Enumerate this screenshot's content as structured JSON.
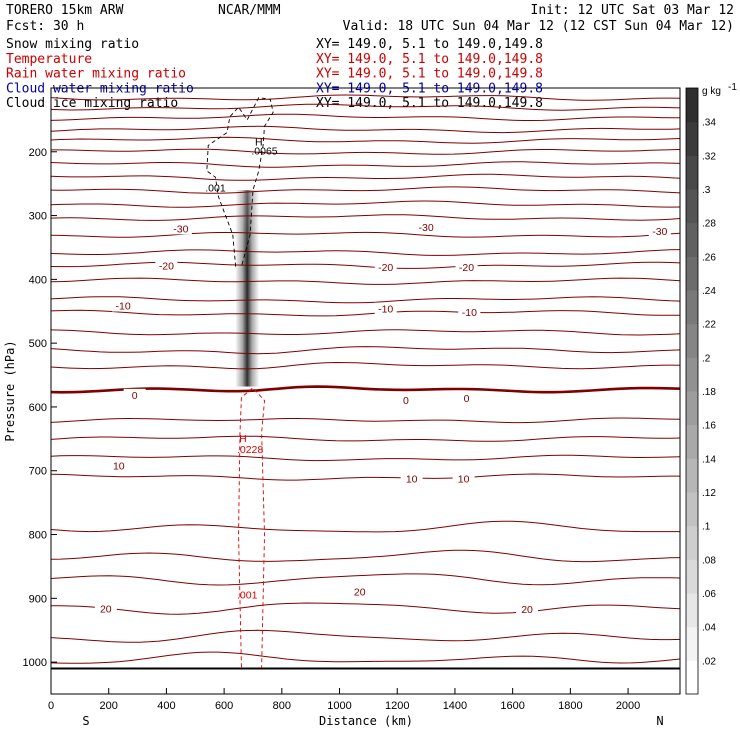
{
  "header": {
    "model": "TORERO  15km ARW",
    "center": "NCAR/MMM",
    "init": "Init: 12 UTC Sat 03 Mar 12",
    "fcst": "Fcst:   30 h",
    "valid": "Valid: 18 UTC Sun 04 Mar 12 (12 CST Sun 04 Mar 12)"
  },
  "fields": [
    {
      "name": "Snow mixing ratio",
      "xy": "XY= 149.0,  5.1 to 149.0,149.8",
      "color": "#000000"
    },
    {
      "name": "Temperature",
      "xy": "XY= 149.0,  5.1 to 149.0,149.8",
      "color": "#cc0000"
    },
    {
      "name": "Rain water mixing ratio",
      "xy": "XY= 149.0,  5.1 to 149.0,149.8",
      "color": "#cc0000"
    },
    {
      "name": "Cloud water mixing ratio",
      "xy": "XY= 149.0,  5.1 to 149.0,149.8",
      "color": "#0000aa"
    },
    {
      "name": "Cloud ice mixing ratio",
      "xy": "XY= 149.0,  5.1 to 149.0,149.8",
      "color": "#000000"
    }
  ],
  "colors": {
    "temperature": "#800000",
    "rain": "#dd0000",
    "ice": "#000000",
    "ground": "#000000"
  },
  "chart_data": {
    "type": "cross-section",
    "xlabel": "Distance (km)",
    "ylabel": "Pressure (hPa)",
    "xlim": [
      0,
      2180
    ],
    "ylim": [
      1050,
      100
    ],
    "x_ticks": [
      0,
      200,
      400,
      600,
      800,
      1000,
      1200,
      1400,
      1600,
      1800,
      2000
    ],
    "y_ticks": [
      200,
      300,
      400,
      500,
      600,
      700,
      800,
      900,
      1000
    ],
    "left_end": "S",
    "right_end": "N",
    "isotherm_levels": [
      {
        "p": 115
      },
      {
        "p": 130
      },
      {
        "p": 146
      },
      {
        "p": 165
      },
      {
        "p": 182
      },
      {
        "p": 200
      },
      {
        "p": 220
      },
      {
        "p": 240
      },
      {
        "p": 260
      },
      {
        "p": 282
      },
      {
        "p": 303
      },
      {
        "p": 330,
        "label": "-30"
      },
      {
        "p": 358
      },
      {
        "p": 378,
        "label": "-20"
      },
      {
        "p": 403
      },
      {
        "p": 432
      },
      {
        "p": 453,
        "label": "-10"
      },
      {
        "p": 483
      },
      {
        "p": 510
      },
      {
        "p": 535
      },
      {
        "p": 572,
        "label": "0",
        "bold": true
      },
      {
        "p": 620
      },
      {
        "p": 650
      },
      {
        "p": 680
      },
      {
        "p": 710,
        "label": "10"
      },
      {
        "p": 790
      },
      {
        "p": 835
      },
      {
        "p": 870
      },
      {
        "p": 915,
        "label": "20"
      },
      {
        "p": 960
      },
      {
        "p": 995
      }
    ],
    "isotherm_labels": [
      {
        "text": "-30",
        "x": 450,
        "p": 320
      },
      {
        "text": "-30",
        "x": 1300,
        "p": 318
      },
      {
        "text": "-30",
        "x": 2110,
        "p": 324
      },
      {
        "text": "-20",
        "x": 400,
        "p": 378
      },
      {
        "text": "-20",
        "x": 1160,
        "p": 381
      },
      {
        "text": "-20",
        "x": 1440,
        "p": 381
      },
      {
        "text": "-10",
        "x": 250,
        "p": 441
      },
      {
        "text": "-10",
        "x": 1160,
        "p": 446
      },
      {
        "text": "-10",
        "x": 1450,
        "p": 451
      },
      {
        "text": "0",
        "x": 290,
        "p": 581
      },
      {
        "text": "0",
        "x": 1230,
        "p": 589
      },
      {
        "text": "0",
        "x": 1440,
        "p": 586
      },
      {
        "text": "10",
        "x": 235,
        "p": 692
      },
      {
        "text": "10",
        "x": 1250,
        "p": 712
      },
      {
        "text": "10",
        "x": 1430,
        "p": 712
      },
      {
        "text": "20",
        "x": 190,
        "p": 916
      },
      {
        "text": "20",
        "x": 1070,
        "p": 889
      },
      {
        "text": "20",
        "x": 1650,
        "p": 917
      }
    ],
    "snow_column": {
      "x_center": 680,
      "p_top": 260,
      "p_bottom": 568,
      "peak": 0.36
    },
    "ice_contour": {
      "label": ".001",
      "h_label": "H",
      "h_value": ".0065"
    },
    "rain_contour": {
      "label": ".001",
      "h_label": "H",
      "h_value": ".0228"
    },
    "ground_pressure": 1010,
    "colorbar": {
      "unit": "g kg",
      "unit_sup": "-1",
      "ticks": [
        ".02",
        ".04",
        ".06",
        ".08",
        ".1",
        ".12",
        ".14",
        ".16",
        ".18",
        ".2",
        ".22",
        ".24",
        ".26",
        ".28",
        ".3",
        ".32",
        ".34"
      ],
      "min": 0,
      "max": 0.36
    }
  }
}
